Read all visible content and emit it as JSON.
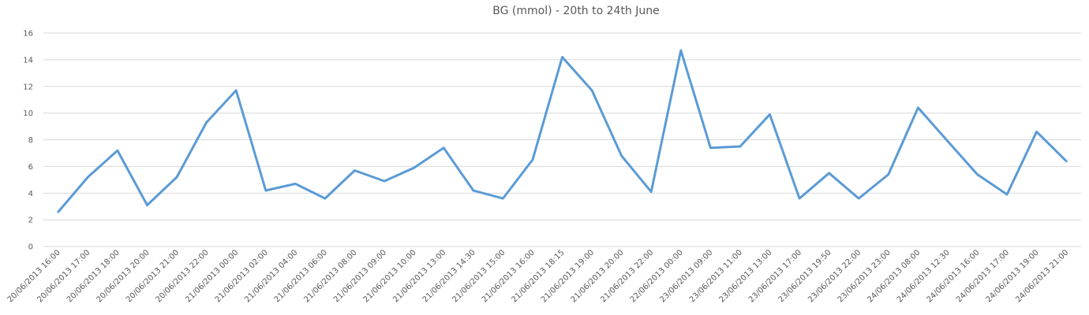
{
  "chart_data": {
    "type": "line",
    "title": "BG (mmol) - 20th to 24th June",
    "xlabel": "",
    "ylabel": "",
    "ylim": [
      0,
      16
    ],
    "yticks": [
      "0",
      "2",
      "4",
      "6",
      "8",
      "10",
      "12",
      "14",
      "16"
    ],
    "grid": true,
    "legend": "none",
    "series_color": "#5b9bd5",
    "categories": [
      "20/06/2013 16:00",
      "20/06/2013 17:00",
      "20/06/2013 18:00",
      "20/06/2013 20:00",
      "20/06/2013 21:00",
      "20/06/2013 22:00",
      "21/06/2013 00:00",
      "21/06/2013 02:00",
      "21/06/2013 04:00",
      "21/06/2013 06:00",
      "21/06/2013 08:00",
      "21/06/2013 09:00",
      "21/06/2013 10:00",
      "21/06/2013 13:00",
      "21/06/2013 14:30",
      "21/06/2013 15:00",
      "21/06/2013 16:00",
      "21/06/2013 18:15",
      "21/06/2013 19:00",
      "21/06/2013 20:00",
      "21/06/2013 22:00",
      "22/06/2013 00:00",
      "23/06/2013 09:00",
      "23/06/2013 11:00",
      "23/06/2013 13:00",
      "23/06/2013 17:00",
      "23/06/2013 19:50",
      "23/06/2013 22:00",
      "23/06/2013 23:00",
      "24/06/2013 08:00",
      "24/06/2013 12:30",
      "24/06/2013 16:00",
      "24/06/2013 17:00",
      "24/06/2013 19:00",
      "24/06/2013 21:00"
    ],
    "values": [
      2.6,
      5.2,
      7.2,
      3.1,
      5.2,
      9.3,
      11.7,
      4.2,
      4.7,
      3.6,
      5.7,
      4.9,
      5.9,
      7.4,
      4.2,
      3.6,
      6.5,
      14.2,
      11.7,
      6.8,
      4.1,
      14.7,
      7.4,
      7.5,
      9.9,
      3.6,
      5.5,
      3.6,
      5.4,
      10.4,
      7.9,
      5.4,
      3.9,
      8.6,
      6.4
    ]
  }
}
